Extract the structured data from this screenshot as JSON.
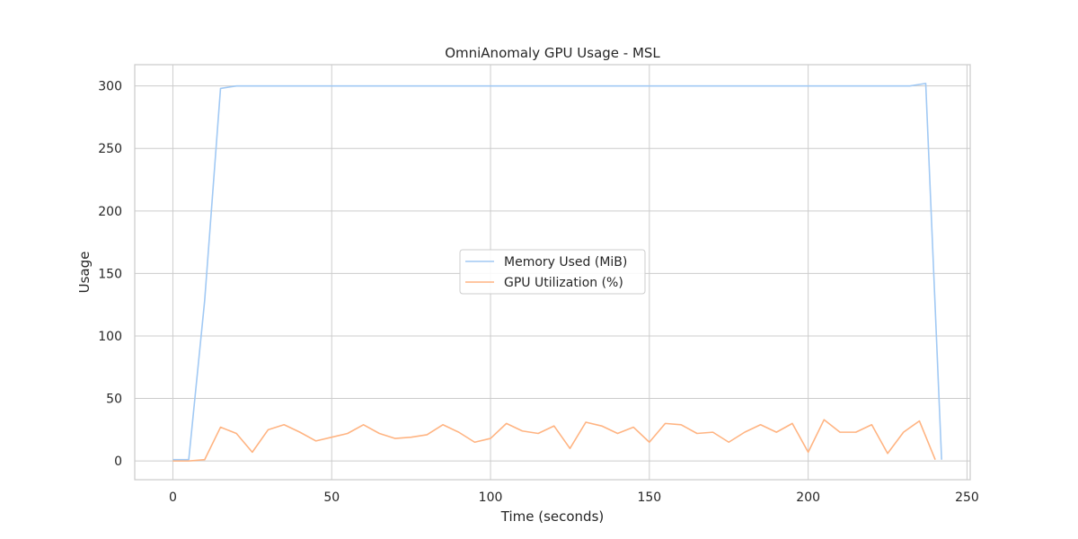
{
  "chart_data": {
    "type": "line",
    "title": "OmniAnomaly GPU Usage - MSL",
    "xlabel": "Time (seconds)",
    "ylabel": "Usage",
    "xlim": [
      -12,
      251
    ],
    "ylim": [
      -15,
      317
    ],
    "xticks": [
      0,
      50,
      100,
      150,
      200,
      250
    ],
    "yticks": [
      0,
      50,
      100,
      150,
      200,
      250,
      300
    ],
    "grid": true,
    "legend_position": "center",
    "series": [
      {
        "name": "Memory Used (MiB)",
        "color": "#a1c9f4",
        "x": [
          0,
          5,
          10,
          15,
          20,
          25,
          232,
          237,
          242
        ],
        "y": [
          1,
          1,
          128,
          298,
          300,
          300,
          300,
          302,
          1
        ]
      },
      {
        "name": "GPU Utilization (%)",
        "color": "#ffb482",
        "x": [
          0,
          5,
          10,
          15,
          20,
          25,
          30,
          35,
          40,
          45,
          50,
          55,
          60,
          65,
          70,
          75,
          80,
          85,
          90,
          95,
          100,
          105,
          110,
          115,
          120,
          125,
          130,
          135,
          140,
          145,
          150,
          155,
          160,
          165,
          170,
          175,
          180,
          185,
          190,
          195,
          200,
          205,
          210,
          215,
          220,
          225,
          230,
          235,
          240
        ],
        "y": [
          0,
          0,
          1,
          27,
          22,
          7,
          25,
          29,
          23,
          16,
          19,
          22,
          29,
          22,
          18,
          19,
          21,
          29,
          23,
          15,
          18,
          30,
          24,
          22,
          28,
          10,
          31,
          28,
          22,
          27,
          15,
          30,
          29,
          22,
          23,
          15,
          23,
          29,
          23,
          30,
          7,
          33,
          23,
          23,
          29,
          6,
          23,
          32,
          1
        ]
      }
    ]
  }
}
